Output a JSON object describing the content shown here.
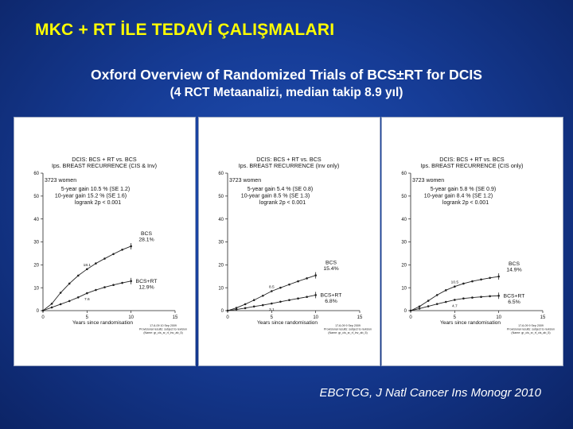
{
  "slide": {
    "title": "MKC + RT İLE TEDAVİ ÇALIŞMALARI",
    "subtitle": "Oxford Overview of Randomized Trials of BCS±RT for DCIS",
    "subtitle2": "(4 RCT Metaanalizi, median takip 8.9 yıl)",
    "citation": "EBCTCG, J Natl Cancer Ins Monogr 2010"
  },
  "colors": {
    "background": "#163c96",
    "title": "#ffff00",
    "text": "#ffffff",
    "line": "#222222"
  },
  "chart_data": [
    {
      "type": "line",
      "title": "DCIS: BCS + RT vs. BCS",
      "subtitle": "Ips. BREAST RECURRENCE (CIS & Inv)",
      "women": "3723 women",
      "stats": [
        "5-year gain 10.5 % (SE 1.2)",
        "10-year gain 15.2 % (SE 1.6)",
        "logrank 2p < 0.001"
      ],
      "xlabel": "Years since randomisation",
      "xlim": [
        0,
        15
      ],
      "ylim": [
        0,
        60
      ],
      "xticks": [
        "0",
        "5",
        "10",
        "15"
      ],
      "yticks": [
        "0",
        "10",
        "20",
        "30",
        "40",
        "50",
        "60"
      ],
      "series": [
        {
          "name": "BCS",
          "end_label": "28.1%",
          "x": [
            0,
            1,
            2,
            3,
            4,
            5,
            6,
            7,
            8,
            9,
            10
          ],
          "y": [
            0,
            3.0,
            7.8,
            11.8,
            15.3,
            18.1,
            20.6,
            22.7,
            24.7,
            26.6,
            28.1
          ],
          "mid_label": "18.1"
        },
        {
          "name": "BCS+RT",
          "end_label": "12.9%",
          "x": [
            0,
            1,
            2,
            3,
            4,
            5,
            6,
            7,
            8,
            9,
            10
          ],
          "y": [
            0,
            1.4,
            2.8,
            4.2,
            5.8,
            7.6,
            9.0,
            10.2,
            11.2,
            12.1,
            12.9
          ],
          "mid_label": "7.6"
        }
      ],
      "footnote": [
        "17-6-09 10 Sep 2009",
        "Provisional results: subject to revision",
        "(Name: gr_cis_sr_rt_inv_ab_5)"
      ]
    },
    {
      "type": "line",
      "title": "DCIS: BCS + RT vs. BCS",
      "subtitle": "Ips. BREAST RECURRENCE (Inv only)",
      "women": "3723 women",
      "stats": [
        "5-year gain  5.4 % (SE 0.8)",
        "10-year gain  8.5 % (SE 1.3)",
        "logrank 2p < 0.001"
      ],
      "xlabel": "Years since randomisation",
      "xlim": [
        0,
        15
      ],
      "ylim": [
        0,
        60
      ],
      "xticks": [
        "0",
        "5",
        "10",
        "15"
      ],
      "yticks": [
        "0",
        "10",
        "20",
        "30",
        "40",
        "50",
        "60"
      ],
      "series": [
        {
          "name": "BCS",
          "end_label": "15.4%",
          "x": [
            0,
            1,
            2,
            3,
            4,
            5,
            6,
            7,
            8,
            9,
            10
          ],
          "y": [
            0,
            1.2,
            2.8,
            4.6,
            6.5,
            8.5,
            10.0,
            11.4,
            12.8,
            14.1,
            15.4
          ],
          "mid_label": "8.5"
        },
        {
          "name": "BCS+RT",
          "end_label": "6.8%",
          "x": [
            0,
            1,
            2,
            3,
            4,
            5,
            6,
            7,
            8,
            9,
            10
          ],
          "y": [
            0,
            0.5,
            1.1,
            1.8,
            2.4,
            3.1,
            3.9,
            4.6,
            5.3,
            6.0,
            6.8
          ],
          "mid_label": "3.1"
        }
      ],
      "footnote": [
        "17-6-09 9 Sep 2009",
        "Provisional results: subject to revision",
        "(Name: gr_cis_sr_rt_inv_ab_5)"
      ]
    },
    {
      "type": "line",
      "title": "DCIS: BCS + RT vs. BCS",
      "subtitle": "Ips. BREAST RECURRENCE (CIS only)",
      "women": "3723 women",
      "stats": [
        "5-year gain  5.8 % (SE 0.9)",
        "10-year gain  8.4 % (SE 1.2)",
        "logrank 2p < 0.001"
      ],
      "xlabel": "Years since randomisation",
      "xlim": [
        0,
        15
      ],
      "ylim": [
        0,
        60
      ],
      "xticks": [
        "0",
        "5",
        "10",
        "15"
      ],
      "yticks": [
        "0",
        "10",
        "20",
        "30",
        "40",
        "50",
        "60"
      ],
      "series": [
        {
          "name": "BCS",
          "end_label": "14.9%",
          "x": [
            0,
            1,
            2,
            3,
            4,
            5,
            6,
            7,
            8,
            9,
            10
          ],
          "y": [
            0,
            1.8,
            4.3,
            6.8,
            8.9,
            10.5,
            11.8,
            12.8,
            13.6,
            14.3,
            14.9
          ],
          "mid_label": "10.5"
        },
        {
          "name": "BCS+RT",
          "end_label": "6.5%",
          "x": [
            0,
            1,
            2,
            3,
            4,
            5,
            6,
            7,
            8,
            9,
            10
          ],
          "y": [
            0,
            0.9,
            1.9,
            2.9,
            3.8,
            4.7,
            5.3,
            5.7,
            6.0,
            6.3,
            6.5
          ],
          "mid_label": "4.7"
        }
      ],
      "footnote": [
        "17-6-09 9 Sep 2009",
        "Provisional results: subject to revision",
        "(Name: gr_cis_sr_rt_cis_ab_5)"
      ]
    }
  ]
}
